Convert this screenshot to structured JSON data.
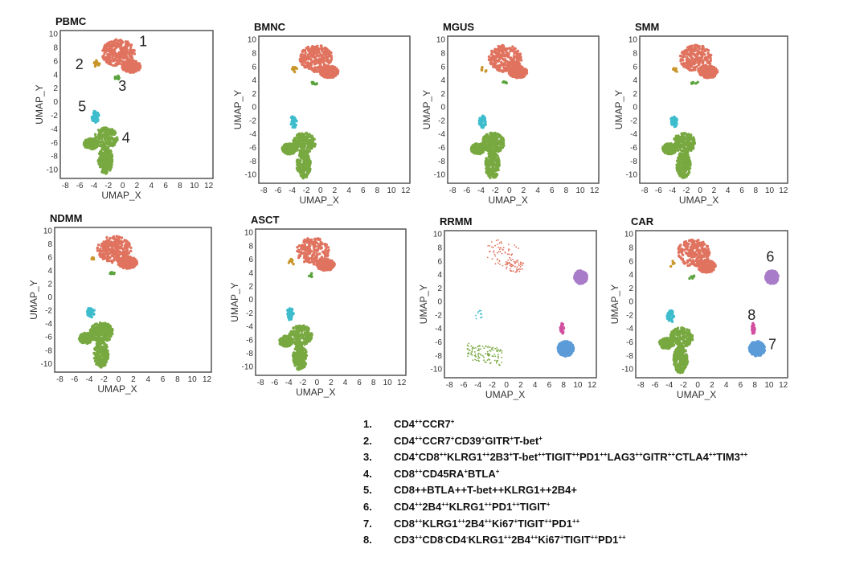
{
  "chart_data": {
    "type": "scatter",
    "xlabel": "UMAP_X",
    "ylabel": "UMAP_Y",
    "xlim": [
      -8.7,
      12.6
    ],
    "ylim": [
      -11.3,
      10.5
    ],
    "xticks": [
      -8,
      -6,
      -4,
      -2,
      0,
      2,
      4,
      6,
      8,
      10,
      12
    ],
    "yticks": [
      -10,
      -8,
      -6,
      -4,
      -2,
      0,
      2,
      4,
      6,
      8,
      10
    ],
    "clusters": [
      {
        "id": "1",
        "color": "#e0735f",
        "shape": [
          [
            -0.6,
            7.2,
            2.3,
            2.0
          ],
          [
            1.2,
            5.2,
            1.3,
            0.9
          ]
        ]
      },
      {
        "id": "2",
        "color": "#c8962a",
        "shape": [
          [
            -3.6,
            5.6,
            0.4,
            0.5
          ]
        ]
      },
      {
        "id": "3",
        "color": "#5aa33c",
        "shape": [
          [
            -0.8,
            3.6,
            0.5,
            0.3
          ]
        ]
      },
      {
        "id": "4",
        "color": "#78a840",
        "shape": [
          [
            -2.3,
            -5.3,
            1.6,
            1.5
          ],
          [
            -2.4,
            -8.6,
            1.0,
            2.0
          ],
          [
            -4.4,
            -6.2,
            1.0,
            0.8
          ]
        ]
      },
      {
        "id": "5",
        "color": "#3dbccc",
        "shape": [
          [
            -3.8,
            -2.2,
            0.5,
            0.9
          ]
        ]
      },
      {
        "id": "6",
        "color": "#a87cc8",
        "shape": [
          [
            10.4,
            3.6,
            0.9,
            1.0
          ]
        ]
      },
      {
        "id": "7",
        "color": "#5b9bd8",
        "shape": [
          [
            8.3,
            -7.0,
            1.1,
            1.1
          ]
        ]
      },
      {
        "id": "8",
        "color": "#d24fa0",
        "shape": [
          [
            7.8,
            -4.0,
            0.25,
            0.8
          ]
        ]
      }
    ],
    "panels": [
      {
        "title": "PBMC",
        "counts": {
          "1": 520,
          "2": 15,
          "3": 10,
          "4": 620,
          "5": 45
        },
        "annotations": [
          {
            "text": "1",
            "x": 2.3,
            "y": 8.2
          },
          {
            "text": "2",
            "x": -6.6,
            "y": 4.8
          },
          {
            "text": "3",
            "x": -0.6,
            "y": 1.6
          },
          {
            "text": "4",
            "x": -0.1,
            "y": -6.0
          },
          {
            "text": "5",
            "x": -6.2,
            "y": -1.4
          }
        ]
      },
      {
        "title": "BMNC",
        "counts": {
          "1": 480,
          "2": 8,
          "3": 8,
          "4": 560,
          "5": 40
        },
        "annotations": []
      },
      {
        "title": "MGUS",
        "counts": {
          "1": 480,
          "2": 6,
          "3": 6,
          "4": 600,
          "5": 45
        },
        "annotations": []
      },
      {
        "title": "SMM",
        "counts": {
          "1": 500,
          "2": 6,
          "3": 6,
          "4": 620,
          "5": 45
        },
        "annotations": []
      },
      {
        "title": "NDMM",
        "counts": {
          "1": 500,
          "2": 6,
          "3": 8,
          "4": 580,
          "5": 40
        },
        "annotations": []
      },
      {
        "title": "ASCT",
        "counts": {
          "1": 420,
          "2": 6,
          "3": 6,
          "4": 560,
          "5": 45
        },
        "annotations": []
      },
      {
        "title": "RRMM",
        "counts": {
          "1": 110,
          "4": 110,
          "5": 12,
          "6": 280,
          "7": 320,
          "8": 25
        },
        "sparse": true,
        "annotations": []
      },
      {
        "title": "CAR",
        "counts": {
          "1": 460,
          "2": 4,
          "3": 6,
          "4": 560,
          "5": 40,
          "6": 260,
          "7": 320,
          "8": 28
        },
        "annotations": [
          {
            "text": "6",
            "x": 9.6,
            "y": 5.9
          },
          {
            "text": "8",
            "x": 7.0,
            "y": -2.7
          },
          {
            "text": "7",
            "x": 9.9,
            "y": -7.1
          }
        ]
      }
    ]
  },
  "legend": [
    {
      "num": "1.",
      "parts": [
        [
          "CD4",
          "++"
        ],
        [
          "CCR7",
          "+"
        ]
      ]
    },
    {
      "num": "2.",
      "parts": [
        [
          "CD4",
          "++"
        ],
        [
          "CCR7",
          "+"
        ],
        [
          "CD39",
          "+"
        ],
        [
          "GITR",
          "+"
        ],
        [
          "T-bet",
          "+"
        ]
      ]
    },
    {
      "num": "3.",
      "parts": [
        [
          "CD4",
          "+"
        ],
        [
          "CD8",
          "++"
        ],
        [
          "KLRG1",
          "++"
        ],
        [
          "2B3",
          "+"
        ],
        [
          "T-bet",
          "++"
        ],
        [
          "TIGIT",
          "++"
        ],
        [
          "PD1",
          "++"
        ],
        [
          "LAG3",
          "++"
        ],
        [
          "GITR",
          "++"
        ],
        [
          "CTLA4",
          "++"
        ],
        [
          "TIM3",
          "++"
        ]
      ]
    },
    {
      "num": "4.",
      "parts": [
        [
          "CD8",
          "++"
        ],
        [
          "CD45RA",
          "+"
        ],
        [
          "BTLA",
          "+"
        ]
      ]
    },
    {
      "num": "5.",
      "parts": [
        [
          "CD8++BTLA++T-bet++KLRG1++2B4+",
          ""
        ]
      ]
    },
    {
      "num": "6.",
      "parts": [
        [
          "CD4",
          "++"
        ],
        [
          "2B4",
          "++"
        ],
        [
          "KLRG1",
          "++"
        ],
        [
          "PD1",
          "++"
        ],
        [
          "TIGIT",
          "+"
        ]
      ]
    },
    {
      "num": "7.",
      "parts": [
        [
          "CD8",
          "++"
        ],
        [
          "KLRG1",
          "++"
        ],
        [
          "2B4",
          "++"
        ],
        [
          "Ki67",
          "+"
        ],
        [
          "TIGIT",
          "++"
        ],
        [
          "PD1",
          "++"
        ]
      ]
    },
    {
      "num": "8.",
      "parts": [
        [
          "CD3",
          "++"
        ],
        [
          "CD8",
          "-"
        ],
        [
          "CD4",
          "-"
        ],
        [
          "KLRG1",
          "++"
        ],
        [
          "2B4",
          "++"
        ],
        [
          "Ki67",
          "+"
        ],
        [
          "TIGIT",
          "++"
        ],
        [
          "PD1",
          "++"
        ]
      ]
    }
  ]
}
